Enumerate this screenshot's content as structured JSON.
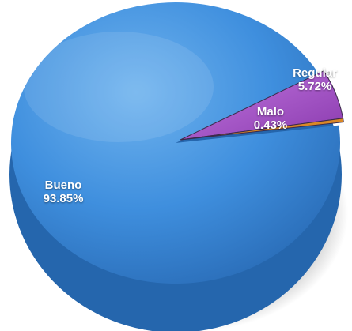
{
  "chart_data": {
    "type": "pie",
    "title": "",
    "legend": "none",
    "slices": [
      {
        "name": "Bueno",
        "value": 93.85,
        "label": "93.85%",
        "color": "#3f8fde"
      },
      {
        "name": "Regular",
        "value": 5.72,
        "label": "5.72%",
        "color": "#a64fc8"
      },
      {
        "name": "Malo",
        "value": 0.43,
        "label": "0.43%",
        "color": "#e0891e"
      }
    ]
  }
}
